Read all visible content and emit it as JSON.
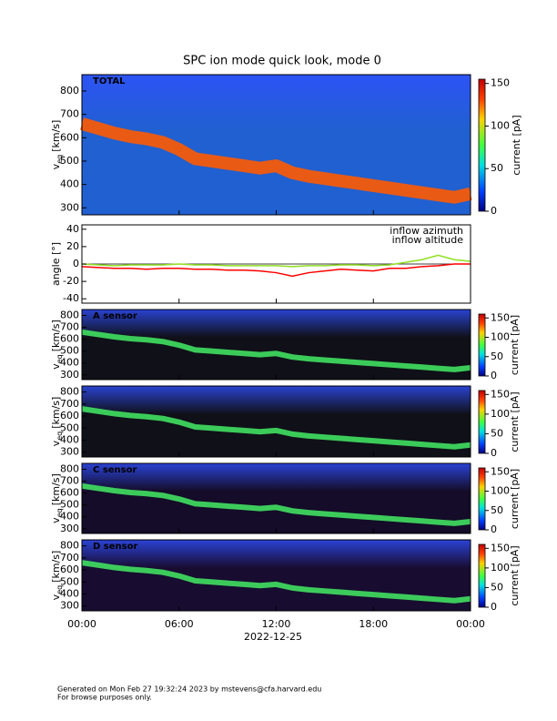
{
  "title": "SPC ion mode quick look, mode 0",
  "x_axis": {
    "xlim": [
      0,
      24
    ],
    "xticks": [
      {
        "value": 0,
        "label": "00:00"
      },
      {
        "value": 6,
        "label": "06:00"
      },
      {
        "value": 12,
        "label": "12:00"
      },
      {
        "value": 18,
        "label": "18:00"
      },
      {
        "value": 24,
        "label": "00:00"
      }
    ],
    "label": "2022-12-25"
  },
  "footer": [
    "Generated on Mon Feb 27 19:32:24 2023 by mstevens@cfa.harvard.edu",
    "For browse purposes only."
  ],
  "chart_data": [
    {
      "type": "spectrogram",
      "panel_label": "TOTAL",
      "ylabel": {
        "main": "v",
        "sub": "eq",
        "unit": "[km/s]"
      },
      "ylim": [
        270,
        870
      ],
      "yticks": [
        300,
        400,
        500,
        600,
        700,
        800
      ],
      "x": [
        0,
        1,
        2,
        3,
        4,
        5,
        6,
        7,
        8,
        9,
        10,
        11,
        12,
        13,
        14,
        15,
        16,
        17,
        18,
        19,
        20,
        21,
        22,
        23,
        24
      ],
      "values": [
        660,
        640,
        620,
        605,
        595,
        580,
        550,
        510,
        500,
        490,
        480,
        470,
        480,
        450,
        435,
        425,
        415,
        405,
        395,
        385,
        375,
        365,
        355,
        345,
        360
      ],
      "ridge_color": "#ff5a00",
      "background": "#2060d0",
      "colorbar": {
        "label": "current [pA]",
        "ylim": [
          0,
          155
        ],
        "yticks": [
          0,
          50,
          100,
          150
        ]
      }
    },
    {
      "type": "line",
      "ylabel": "angle [°]",
      "ylim": [
        -45,
        45
      ],
      "yticks": [
        -40,
        -20,
        0,
        20,
        40
      ],
      "x": [
        0,
        1,
        2,
        3,
        4,
        5,
        6,
        7,
        8,
        9,
        10,
        11,
        12,
        13,
        14,
        15,
        16,
        17,
        18,
        19,
        20,
        21,
        22,
        23,
        24
      ],
      "series": [
        {
          "name": "inflow azimuth",
          "color": "#ff0000",
          "values": [
            -3,
            -4,
            -5,
            -5,
            -6,
            -5,
            -5,
            -6,
            -6,
            -7,
            -7,
            -8,
            -10,
            -14,
            -10,
            -8,
            -6,
            -7,
            -8,
            -5,
            -5,
            -3,
            -2,
            0,
            0
          ]
        },
        {
          "name": "inflow altitude",
          "color": "#90e020",
          "values": [
            0,
            -1,
            -2,
            -1,
            -1,
            -1,
            0,
            -1,
            -1,
            -2,
            -2,
            -2,
            -2,
            -3,
            -2,
            -2,
            -1,
            -1,
            -2,
            -1,
            2,
            5,
            10,
            5,
            3
          ]
        }
      ]
    },
    {
      "type": "spectrogram",
      "panel_label": "A sensor",
      "ylabel": {
        "main": "v",
        "sub": "eq",
        "unit": "[km/s]"
      },
      "ylim": [
        260,
        850
      ],
      "yticks": [
        300,
        400,
        500,
        600,
        700,
        800
      ],
      "x": [
        0,
        1,
        2,
        3,
        4,
        5,
        6,
        7,
        8,
        9,
        10,
        11,
        12,
        13,
        14,
        15,
        16,
        17,
        18,
        19,
        20,
        21,
        22,
        23,
        24
      ],
      "values": [
        660,
        640,
        620,
        605,
        595,
        580,
        550,
        510,
        500,
        490,
        480,
        470,
        480,
        450,
        435,
        425,
        415,
        405,
        395,
        385,
        375,
        365,
        355,
        345,
        360
      ],
      "ridge_color": "#40e060",
      "background": "#101018",
      "colorbar": {
        "label": "current [pA]",
        "ylim": [
          0,
          160
        ],
        "yticks": [
          0,
          50,
          100,
          150
        ]
      }
    },
    {
      "type": "spectrogram",
      "ylabel": {
        "main": "v",
        "sub": "eq",
        "unit": "[km/s]"
      },
      "ylim": [
        260,
        850
      ],
      "yticks": [
        300,
        400,
        500,
        600,
        700,
        800
      ],
      "x": [
        0,
        1,
        2,
        3,
        4,
        5,
        6,
        7,
        8,
        9,
        10,
        11,
        12,
        13,
        14,
        15,
        16,
        17,
        18,
        19,
        20,
        21,
        22,
        23,
        24
      ],
      "values": [
        660,
        640,
        620,
        605,
        595,
        580,
        550,
        510,
        500,
        490,
        480,
        470,
        480,
        450,
        435,
        425,
        415,
        405,
        395,
        385,
        375,
        365,
        355,
        345,
        360
      ],
      "ridge_color": "#40e060",
      "background": "#101018",
      "colorbar": {
        "label": "current [pA]",
        "ylim": [
          0,
          160
        ],
        "yticks": [
          0,
          50,
          100,
          150
        ]
      }
    },
    {
      "type": "spectrogram",
      "panel_label": "C sensor",
      "ylabel": {
        "main": "v",
        "sub": "eq",
        "unit": "[km/s]"
      },
      "ylim": [
        260,
        850
      ],
      "yticks": [
        300,
        400,
        500,
        600,
        700,
        800
      ],
      "x": [
        0,
        1,
        2,
        3,
        4,
        5,
        6,
        7,
        8,
        9,
        10,
        11,
        12,
        13,
        14,
        15,
        16,
        17,
        18,
        19,
        20,
        21,
        22,
        23,
        24
      ],
      "values": [
        660,
        640,
        620,
        605,
        595,
        580,
        550,
        510,
        500,
        490,
        480,
        470,
        480,
        450,
        435,
        425,
        415,
        405,
        395,
        385,
        375,
        365,
        355,
        345,
        360
      ],
      "ridge_color": "#40e060",
      "background": "#140c28",
      "colorbar": {
        "label": "current [pA]",
        "ylim": [
          0,
          160
        ],
        "yticks": [
          0,
          50,
          100,
          150
        ]
      }
    },
    {
      "type": "spectrogram",
      "panel_label": "D sensor",
      "ylabel": {
        "main": "v",
        "sub": "eq",
        "unit": "[km/s]"
      },
      "ylim": [
        260,
        850
      ],
      "yticks": [
        300,
        400,
        500,
        600,
        700,
        800
      ],
      "x": [
        0,
        1,
        2,
        3,
        4,
        5,
        6,
        7,
        8,
        9,
        10,
        11,
        12,
        13,
        14,
        15,
        16,
        17,
        18,
        19,
        20,
        21,
        22,
        23,
        24
      ],
      "values": [
        660,
        640,
        620,
        605,
        595,
        580,
        550,
        510,
        500,
        490,
        480,
        470,
        480,
        450,
        435,
        425,
        415,
        405,
        395,
        385,
        375,
        365,
        355,
        345,
        360
      ],
      "ridge_color": "#40e060",
      "background": "#180c30",
      "colorbar": {
        "label": "current [pA]",
        "ylim": [
          0,
          160
        ],
        "yticks": [
          0,
          50,
          100,
          150
        ]
      }
    }
  ]
}
